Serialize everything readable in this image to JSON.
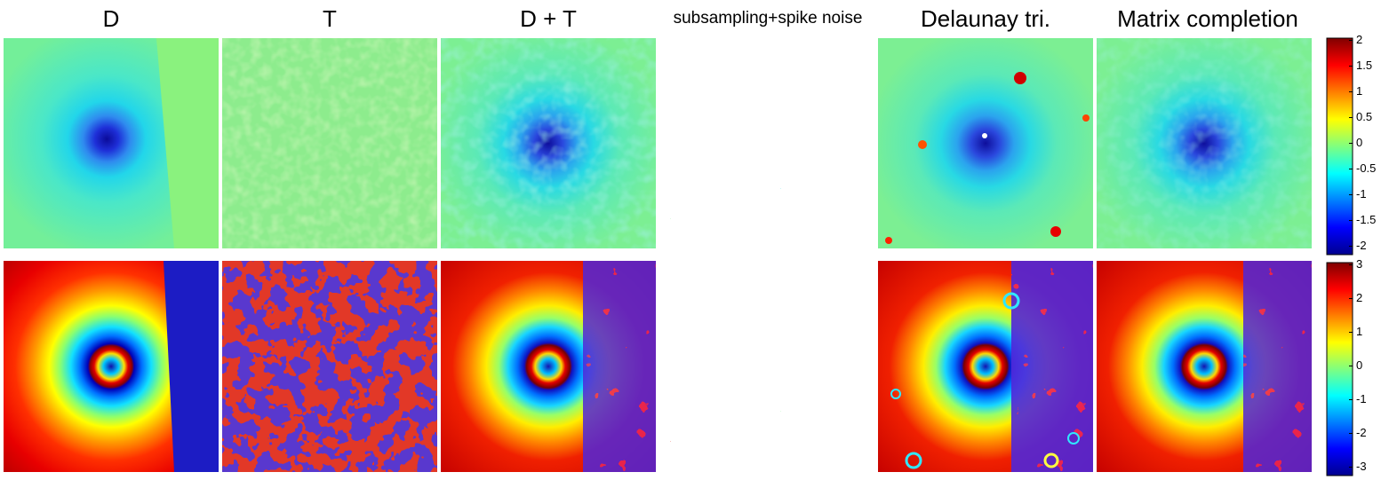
{
  "columns": [
    {
      "title": "D"
    },
    {
      "title": "T"
    },
    {
      "title": "D + T"
    },
    {
      "title": "subsampling+spike noise"
    },
    {
      "title": "Delaunay tri."
    },
    {
      "title": "Matrix completion"
    }
  ],
  "colorbars": [
    {
      "ticks": [
        "2",
        "1.5",
        "1",
        "0.5",
        "0",
        "-0.5",
        "-1",
        "-1.5",
        "-2"
      ]
    },
    {
      "ticks": [
        "3",
        "2",
        "1",
        "0",
        "-1",
        "-2",
        "-3"
      ]
    }
  ],
  "colormap": "jet"
}
